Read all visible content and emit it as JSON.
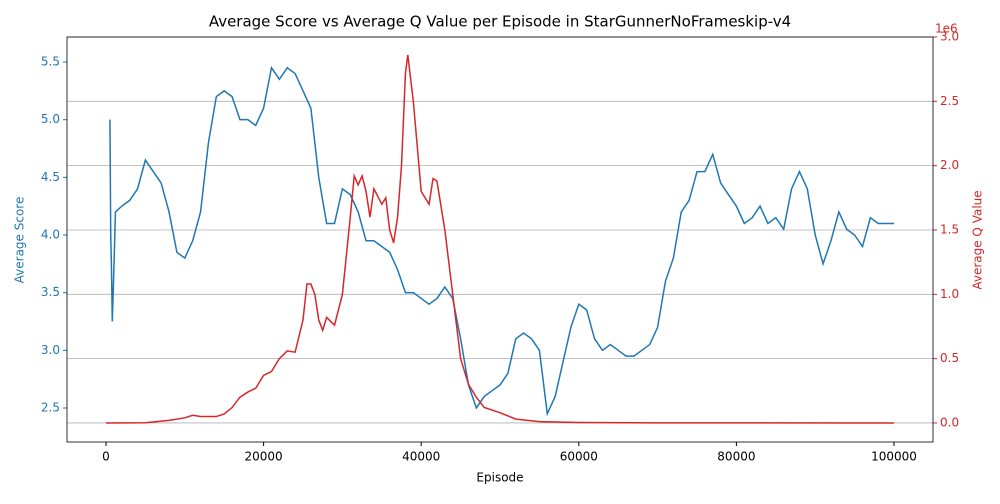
{
  "chart_data": {
    "type": "line",
    "title": "Average Score vs Average Q Value per Episode in StarGunnerNoFrameskip-v4",
    "x_label": "Episode",
    "y_label": "Average Score",
    "y2_label": "Average Q Value",
    "y2_offset_label": "1e6",
    "xlim": [
      -4949,
      104949
    ],
    "xticks": [
      0,
      20000,
      40000,
      60000,
      80000,
      100000
    ],
    "ylim": [
      2.205,
      5.717
    ],
    "yticks": [
      2.5,
      {
        "value": 3.0,
        "label": "3.0"
      },
      3.5,
      {
        "value": 4.0,
        "label": "4.0"
      },
      4.5,
      {
        "value": 5.0,
        "label": "5.0"
      },
      5.5
    ],
    "y2lim": [
      -0.148,
      3.0
    ],
    "y2ticks": [
      {
        "value": 0,
        "label": "0.0"
      },
      0.5,
      {
        "value": 1.0,
        "label": "1.0"
      },
      1.5,
      {
        "value": 2.0,
        "label": "2.0"
      },
      2.5,
      {
        "value": 3.0,
        "label": "3.0"
      }
    ],
    "grid": "y2",
    "series": [
      {
        "name": "Average Score",
        "color": "#1f77b4",
        "axis": "y",
        "x": [
          500,
          600,
          700,
          800,
          1000,
          1200,
          2000,
          3000,
          4000,
          5000,
          5500,
          6000,
          7000,
          8000,
          9000,
          10000,
          11000,
          12000,
          13000,
          14000,
          15000,
          16000,
          17000,
          18000,
          19000,
          20000,
          21000,
          22000,
          23000,
          24000,
          25000,
          26000,
          27000,
          28000,
          29000,
          30000,
          31000,
          32000,
          33000,
          34000,
          35000,
          36000,
          37000,
          38000,
          39000,
          40000,
          41000,
          42000,
          43000,
          44000,
          45000,
          46000,
          47000,
          48000,
          49000,
          50000,
          51000,
          52000,
          53000,
          54000,
          55000,
          56000,
          57000,
          58000,
          59000,
          60000,
          61000,
          62000,
          63000,
          64000,
          65000,
          66000,
          67000,
          68000,
          69000,
          70000,
          71000,
          72000,
          73000,
          74000,
          75000,
          76000,
          77000,
          78000,
          79000,
          80000,
          81000,
          82000,
          83000,
          84000,
          85000,
          86000,
          87000,
          88000,
          89000,
          90000,
          91000,
          92000,
          93000,
          94000,
          95000,
          96000,
          97000,
          98000,
          99000,
          100000
        ],
        "values": [
          5.0,
          4.0,
          3.7,
          3.25,
          3.7,
          4.2,
          4.25,
          4.3,
          4.4,
          4.65,
          4.6,
          4.55,
          4.45,
          4.2,
          3.85,
          3.8,
          3.95,
          4.2,
          4.8,
          5.2,
          5.25,
          5.2,
          5.0,
          5.0,
          4.95,
          5.1,
          5.45,
          5.35,
          5.45,
          5.4,
          5.25,
          5.1,
          4.5,
          4.1,
          4.1,
          4.4,
          4.35,
          4.2,
          3.95,
          3.95,
          3.9,
          3.85,
          3.7,
          3.5,
          3.5,
          3.45,
          3.4,
          3.45,
          3.55,
          3.45,
          3.1,
          2.7,
          2.5,
          2.6,
          2.65,
          2.7,
          2.8,
          3.1,
          3.15,
          3.1,
          3.0,
          2.45,
          2.6,
          2.9,
          3.2,
          3.4,
          3.35,
          3.1,
          3.0,
          3.05,
          3.0,
          2.95,
          2.95,
          3.0,
          3.05,
          3.2,
          3.6,
          3.8,
          4.2,
          4.3,
          4.55,
          4.55,
          4.7,
          4.45,
          4.35,
          4.25,
          4.1,
          4.15,
          4.25,
          4.1,
          4.15,
          4.05,
          4.4,
          4.55,
          4.4,
          4.0,
          3.75,
          3.95,
          4.2,
          4.05,
          4.0,
          3.9,
          4.15,
          4.1,
          4.1,
          4.1
        ]
      },
      {
        "name": "Average Q Value",
        "color": "#d62728",
        "axis": "y2",
        "x": [
          0,
          5000,
          8000,
          10000,
          11000,
          12000,
          14000,
          15000,
          16000,
          17000,
          18000,
          19000,
          20000,
          21000,
          22000,
          23000,
          24000,
          25000,
          25500,
          26000,
          26500,
          27000,
          27500,
          28000,
          29000,
          30000,
          31000,
          31500,
          32000,
          32500,
          33000,
          33500,
          34000,
          35000,
          35500,
          36000,
          36500,
          37000,
          37500,
          38000,
          38300,
          39000,
          40000,
          41000,
          41500,
          42000,
          43000,
          44000,
          45000,
          46000,
          47000,
          48000,
          50000,
          52000,
          55000,
          60000,
          70000,
          100000
        ],
        "values": [
          0,
          0.002,
          0.02,
          0.04,
          0.06,
          0.05,
          0.05,
          0.07,
          0.12,
          0.2,
          0.24,
          0.27,
          0.37,
          0.4,
          0.5,
          0.56,
          0.55,
          0.8,
          1.08,
          1.08,
          1.0,
          0.8,
          0.72,
          0.82,
          0.76,
          1.0,
          1.6,
          1.92,
          1.85,
          1.92,
          1.8,
          1.6,
          1.82,
          1.7,
          1.75,
          1.5,
          1.4,
          1.6,
          2.0,
          2.72,
          2.86,
          2.5,
          1.8,
          1.7,
          1.9,
          1.88,
          1.5,
          1.0,
          0.5,
          0.3,
          0.2,
          0.12,
          0.08,
          0.03,
          0.01,
          0.004,
          0.001,
          0
        ]
      }
    ]
  }
}
